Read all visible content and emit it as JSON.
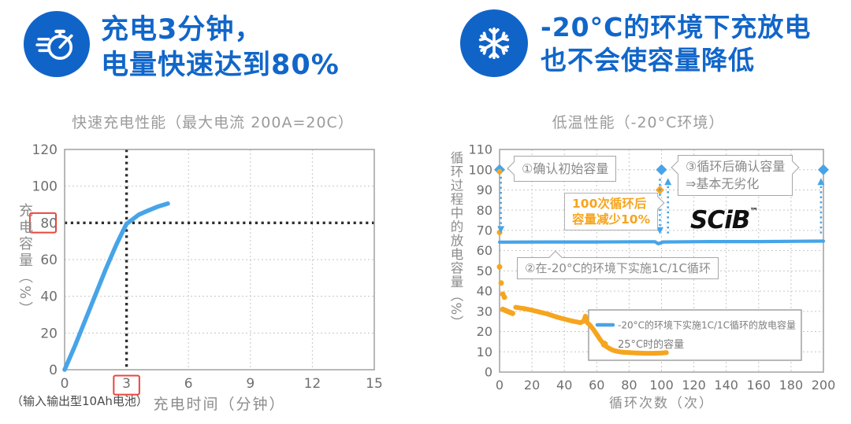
{
  "page": {
    "background": "#ffffff"
  },
  "colors": {
    "accent_blue": "#1164c7",
    "line_blue": "#47a4e8",
    "orange": "#f6a51f",
    "highlight_red": "#e8473f",
    "grid": "#c6c6c6",
    "frame": "#9a9a9a",
    "tick_text": "#6f6f6f",
    "muted_text": "#9b9b9b"
  },
  "header": {
    "left": {
      "icon": "stopwatch-icon",
      "line1": "充电3分钟，",
      "line2": "电量快速达到80%"
    },
    "right": {
      "icon": "snowflake-icon",
      "line1": "-20°C的环境下充放电",
      "line2": "也不会使容量降低"
    }
  },
  "chart_data": [
    {
      "type": "line",
      "title": "快速充电性能（最大电流 200A=20C）",
      "xlabel": "充电时间（分钟）",
      "ylabel": "充电容量（%）",
      "xlim": [
        0,
        15
      ],
      "ylim": [
        0,
        120
      ],
      "xticks": [
        0,
        3,
        6,
        9,
        12,
        15
      ],
      "yticks": [
        0,
        20,
        40,
        60,
        80,
        100,
        120
      ],
      "grid": "dotted",
      "reference_lines": {
        "x": 3,
        "y": 80,
        "style": "bold-dotted",
        "color": "#2e2e2e"
      },
      "highlight": {
        "xtick": 3,
        "ytick": 80,
        "box_color": "#e8473f"
      },
      "series": [
        {
          "name": "充电容量",
          "type": "line",
          "color": "#47a4e8",
          "width": 5.5,
          "points": [
            [
              0,
              0
            ],
            [
              0.5,
              13
            ],
            [
              1,
              27
            ],
            [
              1.5,
              41
            ],
            [
              2,
              55
            ],
            [
              2.5,
              68
            ],
            [
              2.8,
              75
            ],
            [
              3,
              79.5
            ],
            [
              3.3,
              82
            ],
            [
              3.6,
              84.5
            ],
            [
              4,
              86.5
            ],
            [
              4.5,
              88.8
            ],
            [
              5,
              90.5
            ]
          ]
        }
      ],
      "footnote": "（输入输出型10Ah电池）"
    },
    {
      "type": "line",
      "title": "低温性能（-20°C环境）",
      "xlabel": "循环次数（次）",
      "ylabel": "循环过程中的放电容量（%）",
      "xlim": [
        0,
        200
      ],
      "ylim": [
        0,
        110
      ],
      "xticks": [
        0,
        20,
        40,
        60,
        80,
        100,
        120,
        140,
        160,
        180,
        200
      ],
      "yticks": [
        0,
        10,
        20,
        30,
        40,
        50,
        60,
        70,
        80,
        90,
        100,
        110
      ],
      "grid": "dotted",
      "series": [
        {
          "name": "-20°C的环境下实施1C/1C循环的放电容量",
          "type": "line",
          "color": "#47a4e8",
          "width": 4.2,
          "points": [
            [
              0,
              64.2
            ],
            [
              30,
              64.3
            ],
            [
              60,
              64.3
            ],
            [
              90,
              64.4
            ],
            [
              96,
              64.4
            ],
            [
              98,
              63.4
            ],
            [
              101,
              64.3
            ],
            [
              130,
              64.5
            ],
            [
              160,
              64.5
            ],
            [
              200,
              64.7
            ]
          ],
          "markers": {
            "shape": "diamond",
            "color": "#47a4e8",
            "points": [
              [
                0,
                100
              ],
              [
                100,
                100
              ],
              [
                200,
                100
              ]
            ]
          }
        },
        {
          "name": "25°C时的容量",
          "type": "scatter",
          "color": "#f6a51f",
          "points": [
            [
              0,
              99
            ],
            [
              0,
              69
            ],
            [
              0,
              52
            ],
            [
              1,
              44
            ],
            [
              2,
              38.5
            ],
            [
              3,
              37
            ],
            [
              2,
              31
            ],
            [
              3.5,
              30.5
            ],
            [
              5,
              30
            ],
            [
              6.5,
              29.5
            ],
            [
              8,
              29
            ]
          ],
          "band": [
            [
              10,
              32
            ],
            [
              15,
              31.4
            ],
            [
              20,
              30.6
            ],
            [
              25,
              29.6
            ],
            [
              30,
              28.6
            ],
            [
              35,
              27.3
            ],
            [
              40,
              26.2
            ],
            [
              45,
              25.2
            ],
            [
              50,
              24.4
            ],
            [
              52,
              25.2
            ],
            [
              53,
              27.6
            ],
            [
              54,
              24.6
            ],
            [
              56,
              23
            ],
            [
              58,
              21
            ],
            [
              60,
              18.6
            ],
            [
              62,
              16.2
            ],
            [
              64,
              14.2
            ],
            [
              66,
              12.6
            ],
            [
              68,
              11.6
            ],
            [
              70,
              10.8
            ],
            [
              73,
              10.2
            ],
            [
              76,
              9.8
            ],
            [
              80,
              9.6
            ],
            [
              85,
              9.4
            ],
            [
              90,
              9.3
            ],
            [
              95,
              9.3
            ],
            [
              100,
              9.4
            ],
            [
              103,
              9.6
            ]
          ],
          "extra_marker": {
            "shape": "diamond",
            "color": "#f6a51f",
            "points": [
              [
                99,
                90
              ]
            ]
          }
        }
      ],
      "arrows_color": "#47a4e8",
      "arrows": [
        {
          "x": 0.8,
          "y1": 96.5,
          "y2": 69,
          "head": "down"
        },
        {
          "x": 99,
          "y1": 95.5,
          "y2": 68.5,
          "head": "down"
        },
        {
          "x": 104,
          "y1": 68.5,
          "y2": 95.5,
          "head": "up"
        },
        {
          "x": 198.5,
          "y1": 68.5,
          "y2": 95.5,
          "head": "up"
        }
      ],
      "annotations": [
        {
          "id": "initial",
          "text": "①确认初始容量"
        },
        {
          "id": "after",
          "lines": [
            "③循环后确认容量",
            "⇒基本无劣化"
          ]
        },
        {
          "id": "drop",
          "lines": [
            "100次循环后",
            "容量减少10%"
          ],
          "color": "#f6a51f"
        },
        {
          "id": "cycle",
          "text": "②在-20°C的环境下实施1C/1C循环"
        }
      ],
      "legend": {
        "position": "inside-bottom-right",
        "items": [
          {
            "label": "-20°C的环境下实施1C/1C循环的放电容量",
            "marker": "blue-dash",
            "color": "#47a4e8"
          },
          {
            "label": "25°C时的容量",
            "marker": "orange-dot",
            "color": "#f6a51f"
          }
        ]
      },
      "brand": "SCiB",
      "brand_tm": "™"
    }
  ]
}
